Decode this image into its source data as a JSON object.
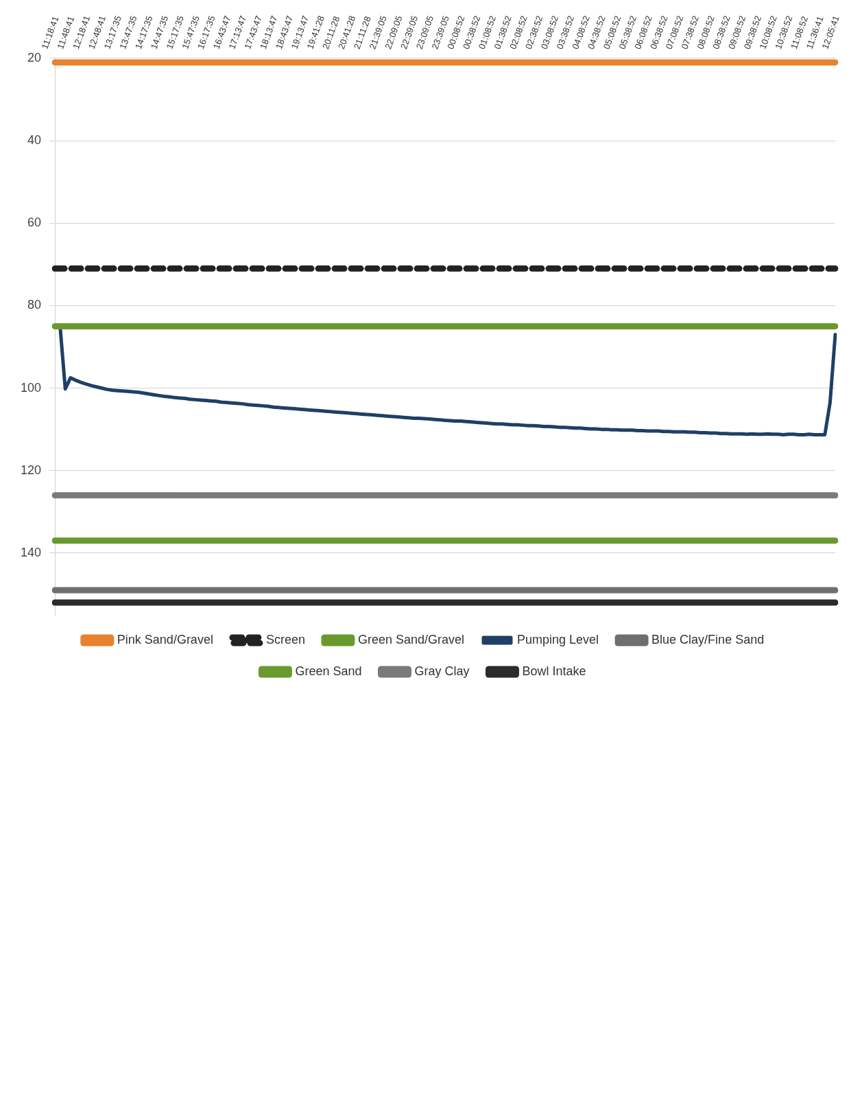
{
  "chart_data": {
    "type": "line",
    "categories": [
      "11:18:41",
      null,
      null,
      "11:48:41",
      null,
      null,
      "12:18:41",
      null,
      null,
      "12:48:41",
      null,
      null,
      "13:17:35",
      null,
      null,
      "13:47:35",
      null,
      null,
      "14:17:35",
      null,
      null,
      "14:47:35",
      null,
      null,
      "15:17:35",
      null,
      null,
      "15:47:35",
      null,
      null,
      "16:17:35",
      null,
      null,
      "16:43:47",
      null,
      null,
      "17:13:47",
      null,
      null,
      "17:43:47",
      null,
      null,
      "18:13:47",
      null,
      null,
      "18:43:47",
      null,
      null,
      "19:13:47",
      null,
      null,
      "19:41:28",
      null,
      null,
      "20:11:28",
      null,
      null,
      "20:41:28",
      null,
      null,
      "21:11:28",
      null,
      null,
      "21:39:05",
      null,
      null,
      "22:09:05",
      null,
      null,
      "22:39:05",
      null,
      null,
      "23:09:05",
      null,
      null,
      "23:39:05",
      null,
      null,
      "00:08:52",
      null,
      null,
      "00:38:52",
      null,
      null,
      "01:08:52",
      null,
      null,
      "01:38:52",
      null,
      null,
      "02:08:52",
      null,
      null,
      "02:38:52",
      null,
      null,
      "03:08:52",
      null,
      null,
      "03:38:52",
      null,
      null,
      "04:08:52",
      null,
      null,
      "04:38:52",
      null,
      null,
      "05:08:52",
      null,
      null,
      "05:38:52",
      null,
      null,
      "06:08:52",
      null,
      null,
      "06:38:52",
      null,
      null,
      "07:08:52",
      null,
      null,
      "07:38:52",
      null,
      null,
      "08:08:52",
      null,
      null,
      "08:38:52",
      null,
      null,
      "09:08:52",
      null,
      null,
      "09:38:52",
      null,
      null,
      "10:08:52",
      null,
      null,
      "10:38:52",
      null,
      null,
      "11:08:52",
      null,
      null,
      "11:36:41",
      null,
      null,
      "12:05:41"
    ],
    "series": [
      {
        "name": "Pink Sand/Gravel",
        "color": "#e8822e",
        "values": [
          21,
          21,
          21,
          21,
          21,
          21,
          21,
          21,
          21,
          21,
          21,
          21,
          21,
          21,
          21,
          21,
          21,
          21,
          21,
          21,
          21,
          21,
          21,
          21,
          21,
          21,
          21,
          21,
          21,
          21,
          21,
          21,
          21,
          21,
          21,
          21,
          21,
          21,
          21,
          21,
          21,
          21,
          21,
          21,
          21,
          21,
          21,
          21,
          21,
          21,
          21,
          21,
          21,
          21,
          21,
          21,
          21,
          21,
          21,
          21,
          21,
          21,
          21,
          21,
          21,
          21,
          21,
          21,
          21,
          21,
          21,
          21,
          21,
          21,
          21,
          21,
          21,
          21,
          21,
          21,
          21,
          21,
          21,
          21,
          21,
          21,
          21,
          21,
          21,
          21,
          21,
          21,
          21,
          21,
          21,
          21,
          21,
          21,
          21,
          21,
          21,
          21,
          21,
          21,
          21,
          21,
          21,
          21,
          21,
          21,
          21,
          21,
          21,
          21,
          21,
          21,
          21,
          21,
          21,
          21,
          21,
          21,
          21,
          21,
          21,
          21,
          21,
          21,
          21,
          21,
          21,
          21,
          21,
          21,
          21,
          21,
          21,
          21,
          21,
          21,
          21,
          21,
          21,
          21,
          21,
          21,
          21,
          21,
          21,
          21,
          21
        ]
      },
      {
        "name": "Screen",
        "color": "#222222",
        "line_style": "dashed",
        "values": [
          71,
          71,
          71,
          71,
          71,
          71,
          71,
          71,
          71,
          71,
          71,
          71,
          71,
          71,
          71,
          71,
          71,
          71,
          71,
          71,
          71,
          71,
          71,
          71,
          71,
          71,
          71,
          71,
          71,
          71,
          71,
          71,
          71,
          71,
          71,
          71,
          71,
          71,
          71,
          71,
          71,
          71,
          71,
          71,
          71,
          71,
          71,
          71,
          71,
          71,
          71,
          71,
          71,
          71,
          71,
          71,
          71,
          71,
          71,
          71,
          71,
          71,
          71,
          71,
          71,
          71,
          71,
          71,
          71,
          71,
          71,
          71,
          71,
          71,
          71,
          71,
          71,
          71,
          71,
          71,
          71,
          71,
          71,
          71,
          71,
          71,
          71,
          71,
          71,
          71,
          71,
          71,
          71,
          71,
          71,
          71,
          71,
          71,
          71,
          71,
          71,
          71,
          71,
          71,
          71,
          71,
          71,
          71,
          71,
          71,
          71,
          71,
          71,
          71,
          71,
          71,
          71,
          71,
          71,
          71,
          71,
          71,
          71,
          71,
          71,
          71,
          71,
          71,
          71,
          71,
          71,
          71,
          71,
          71,
          71,
          71,
          71,
          71,
          71,
          71,
          71,
          71,
          71,
          71,
          71,
          71,
          71,
          71,
          71,
          71,
          71
        ]
      },
      {
        "name": "Green Sand/Gravel",
        "color": "#6a9a2e",
        "values": [
          85,
          85,
          85,
          85,
          85,
          85,
          85,
          85,
          85,
          85,
          85,
          85,
          85,
          85,
          85,
          85,
          85,
          85,
          85,
          85,
          85,
          85,
          85,
          85,
          85,
          85,
          85,
          85,
          85,
          85,
          85,
          85,
          85,
          85,
          85,
          85,
          85,
          85,
          85,
          85,
          85,
          85,
          85,
          85,
          85,
          85,
          85,
          85,
          85,
          85,
          85,
          85,
          85,
          85,
          85,
          85,
          85,
          85,
          85,
          85,
          85,
          85,
          85,
          85,
          85,
          85,
          85,
          85,
          85,
          85,
          85,
          85,
          85,
          85,
          85,
          85,
          85,
          85,
          85,
          85,
          85,
          85,
          85,
          85,
          85,
          85,
          85,
          85,
          85,
          85,
          85,
          85,
          85,
          85,
          85,
          85,
          85,
          85,
          85,
          85,
          85,
          85,
          85,
          85,
          85,
          85,
          85,
          85,
          85,
          85,
          85,
          85,
          85,
          85,
          85,
          85,
          85,
          85,
          85,
          85,
          85,
          85,
          85,
          85,
          85,
          85,
          85,
          85,
          85,
          85,
          85,
          85,
          85,
          85,
          85,
          85,
          85,
          85,
          85,
          85,
          85,
          85,
          85,
          85,
          85,
          85,
          85,
          85,
          85,
          85,
          85
        ]
      },
      {
        "name": "Pumping Level",
        "color": "#1f3f66",
        "values": [
          85,
          85,
          100.2,
          97.5,
          98.1,
          98.6,
          99.0,
          99.4,
          99.7,
          100.0,
          100.3,
          100.5,
          100.6,
          100.7,
          100.8,
          100.9,
          101.0,
          101.2,
          101.4,
          101.6,
          101.8,
          102.0,
          102.1,
          102.3,
          102.4,
          102.5,
          102.7,
          102.8,
          102.9,
          103.0,
          103.1,
          103.2,
          103.4,
          103.5,
          103.6,
          103.7,
          103.8,
          104.0,
          104.1,
          104.2,
          104.3,
          104.4,
          104.6,
          104.7,
          104.8,
          104.9,
          105.0,
          105.1,
          105.2,
          105.3,
          105.4,
          105.5,
          105.6,
          105.7,
          105.8,
          105.9,
          106.0,
          106.1,
          106.2,
          106.3,
          106.4,
          106.5,
          106.6,
          106.7,
          106.8,
          106.9,
          107.0,
          107.1,
          107.2,
          107.3,
          107.3,
          107.4,
          107.5,
          107.6,
          107.7,
          107.8,
          107.9,
          108.0,
          108.0,
          108.1,
          108.2,
          108.3,
          108.4,
          108.5,
          108.6,
          108.7,
          108.7,
          108.8,
          108.9,
          108.9,
          109.0,
          109.1,
          109.1,
          109.2,
          109.3,
          109.3,
          109.4,
          109.5,
          109.5,
          109.6,
          109.7,
          109.7,
          109.8,
          109.9,
          109.9,
          110.0,
          110.0,
          110.1,
          110.1,
          110.2,
          110.2,
          110.2,
          110.3,
          110.3,
          110.4,
          110.4,
          110.4,
          110.5,
          110.5,
          110.6,
          110.6,
          110.6,
          110.7,
          110.7,
          110.8,
          110.8,
          110.9,
          110.9,
          111.0,
          111.0,
          111.1,
          111.1,
          111.1,
          111.2,
          111.1,
          111.2,
          111.2,
          111.1,
          111.2,
          111.2,
          111.3,
          111.2,
          111.2,
          111.3,
          111.3,
          111.2,
          111.3,
          111.3,
          111.3,
          103.5,
          87
        ]
      },
      {
        "name": "Blue Clay/Fine Sand",
        "color": "#6d6f70",
        "values": [
          149,
          149,
          149,
          149,
          149,
          149,
          149,
          149,
          149,
          149,
          149,
          149,
          149,
          149,
          149,
          149,
          149,
          149,
          149,
          149,
          149,
          149,
          149,
          149,
          149,
          149,
          149,
          149,
          149,
          149,
          149,
          149,
          149,
          149,
          149,
          149,
          149,
          149,
          149,
          149,
          149,
          149,
          149,
          149,
          149,
          149,
          149,
          149,
          149,
          149,
          149,
          149,
          149,
          149,
          149,
          149,
          149,
          149,
          149,
          149,
          149,
          149,
          149,
          149,
          149,
          149,
          149,
          149,
          149,
          149,
          149,
          149,
          149,
          149,
          149,
          149,
          149,
          149,
          149,
          149,
          149,
          149,
          149,
          149,
          149,
          149,
          149,
          149,
          149,
          149,
          149,
          149,
          149,
          149,
          149,
          149,
          149,
          149,
          149,
          149,
          149,
          149,
          149,
          149,
          149,
          149,
          149,
          149,
          149,
          149,
          149,
          149,
          149,
          149,
          149,
          149,
          149,
          149,
          149,
          149,
          149,
          149,
          149,
          149,
          149,
          149,
          149,
          149,
          149,
          149,
          149,
          149,
          149,
          149,
          149,
          149,
          149,
          149,
          149,
          149,
          149,
          149,
          149,
          149,
          149,
          149,
          149,
          149,
          149,
          149,
          149
        ]
      },
      {
        "name": "Green Sand",
        "color": "#6a9a2e",
        "values": [
          137,
          137,
          137,
          137,
          137,
          137,
          137,
          137,
          137,
          137,
          137,
          137,
          137,
          137,
          137,
          137,
          137,
          137,
          137,
          137,
          137,
          137,
          137,
          137,
          137,
          137,
          137,
          137,
          137,
          137,
          137,
          137,
          137,
          137,
          137,
          137,
          137,
          137,
          137,
          137,
          137,
          137,
          137,
          137,
          137,
          137,
          137,
          137,
          137,
          137,
          137,
          137,
          137,
          137,
          137,
          137,
          137,
          137,
          137,
          137,
          137,
          137,
          137,
          137,
          137,
          137,
          137,
          137,
          137,
          137,
          137,
          137,
          137,
          137,
          137,
          137,
          137,
          137,
          137,
          137,
          137,
          137,
          137,
          137,
          137,
          137,
          137,
          137,
          137,
          137,
          137,
          137,
          137,
          137,
          137,
          137,
          137,
          137,
          137,
          137,
          137,
          137,
          137,
          137,
          137,
          137,
          137,
          137,
          137,
          137,
          137,
          137,
          137,
          137,
          137,
          137,
          137,
          137,
          137,
          137,
          137,
          137,
          137,
          137,
          137,
          137,
          137,
          137,
          137,
          137,
          137,
          137,
          137,
          137,
          137,
          137,
          137,
          137,
          137,
          137,
          137,
          137,
          137,
          137,
          137,
          137,
          137,
          137,
          137,
          137,
          137
        ]
      },
      {
        "name": "Gray Clay",
        "color": "#7a7a7a",
        "values": [
          126,
          126,
          126,
          126,
          126,
          126,
          126,
          126,
          126,
          126,
          126,
          126,
          126,
          126,
          126,
          126,
          126,
          126,
          126,
          126,
          126,
          126,
          126,
          126,
          126,
          126,
          126,
          126,
          126,
          126,
          126,
          126,
          126,
          126,
          126,
          126,
          126,
          126,
          126,
          126,
          126,
          126,
          126,
          126,
          126,
          126,
          126,
          126,
          126,
          126,
          126,
          126,
          126,
          126,
          126,
          126,
          126,
          126,
          126,
          126,
          126,
          126,
          126,
          126,
          126,
          126,
          126,
          126,
          126,
          126,
          126,
          126,
          126,
          126,
          126,
          126,
          126,
          126,
          126,
          126,
          126,
          126,
          126,
          126,
          126,
          126,
          126,
          126,
          126,
          126,
          126,
          126,
          126,
          126,
          126,
          126,
          126,
          126,
          126,
          126,
          126,
          126,
          126,
          126,
          126,
          126,
          126,
          126,
          126,
          126,
          126,
          126,
          126,
          126,
          126,
          126,
          126,
          126,
          126,
          126,
          126,
          126,
          126,
          126,
          126,
          126,
          126,
          126,
          126,
          126,
          126,
          126,
          126,
          126,
          126,
          126,
          126,
          126,
          126,
          126,
          126,
          126,
          126,
          126,
          126,
          126,
          126,
          126,
          126,
          126,
          126
        ]
      },
      {
        "name": "Bowl Intake",
        "color": "#2b2b2b",
        "values": [
          152,
          152,
          152,
          152,
          152,
          152,
          152,
          152,
          152,
          152,
          152,
          152,
          152,
          152,
          152,
          152,
          152,
          152,
          152,
          152,
          152,
          152,
          152,
          152,
          152,
          152,
          152,
          152,
          152,
          152,
          152,
          152,
          152,
          152,
          152,
          152,
          152,
          152,
          152,
          152,
          152,
          152,
          152,
          152,
          152,
          152,
          152,
          152,
          152,
          152,
          152,
          152,
          152,
          152,
          152,
          152,
          152,
          152,
          152,
          152,
          152,
          152,
          152,
          152,
          152,
          152,
          152,
          152,
          152,
          152,
          152,
          152,
          152,
          152,
          152,
          152,
          152,
          152,
          152,
          152,
          152,
          152,
          152,
          152,
          152,
          152,
          152,
          152,
          152,
          152,
          152,
          152,
          152,
          152,
          152,
          152,
          152,
          152,
          152,
          152,
          152,
          152,
          152,
          152,
          152,
          152,
          152,
          152,
          152,
          152,
          152,
          152,
          152,
          152,
          152,
          152,
          152,
          152,
          152,
          152,
          152,
          152,
          152,
          152,
          152,
          152,
          152,
          152,
          152,
          152,
          152,
          152,
          152,
          152,
          152,
          152,
          152,
          152,
          152,
          152,
          152,
          152,
          152,
          152,
          152,
          152,
          152,
          152,
          152,
          152,
          152
        ]
      }
    ],
    "ylim": [
      155,
      20
    ],
    "yticks": [
      20,
      40,
      60,
      80,
      100,
      120,
      140
    ],
    "grid": "y",
    "legend": "bottom",
    "marker": "none"
  }
}
